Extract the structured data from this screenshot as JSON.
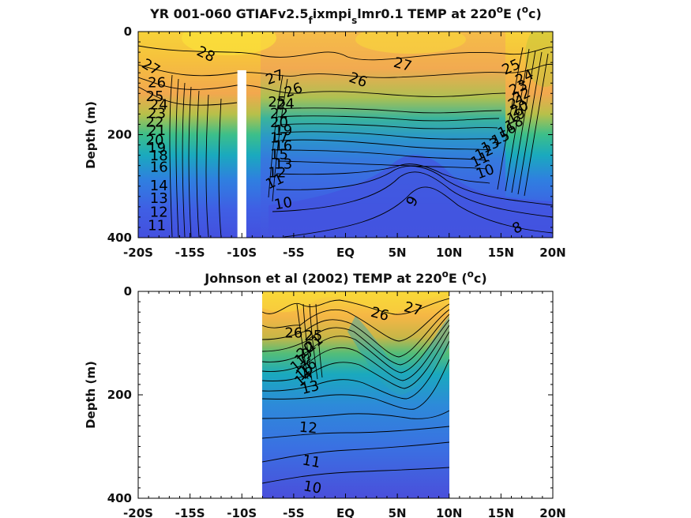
{
  "chart_data": [
    {
      "type": "contour",
      "title_main": "YR 001-060 GTIAFv2.5",
      "title_sub1": "f",
      "title_mid": "ixmpi",
      "title_sub2": "s",
      "title_tail": "lmr0.1 TEMP at 220",
      "title_sup": "o",
      "title_end": "E (",
      "title_unit_sup": "o",
      "title_unit_end": "c)",
      "ylabel": "Depth (m)",
      "xlim": [
        -20,
        20
      ],
      "ylim": [
        400,
        0
      ],
      "xticks": [
        -20,
        -15,
        -10,
        -5,
        0,
        5,
        10,
        15,
        20
      ],
      "xtick_labels": [
        "-20S",
        "-15S",
        "-10S",
        "-5S",
        "EQ",
        "5N",
        "10N",
        "15N",
        "20N"
      ],
      "yticks": [
        0,
        200,
        400
      ],
      "ytick_labels": [
        "0",
        "200",
        "400"
      ],
      "data_range_lat": [
        -20,
        20
      ],
      "masked_band_lat": [
        -10.2,
        -9.8
      ],
      "masked_band_depth": [
        75,
        400
      ],
      "contour_labels": [
        {
          "text": "28",
          "lat": -13.5,
          "depth": 45,
          "rot": 25
        },
        {
          "text": "27",
          "lat": -18.8,
          "depth": 70,
          "rot": 30
        },
        {
          "text": "26",
          "lat": -18.2,
          "depth": 100,
          "rot": 0
        },
        {
          "text": "25",
          "lat": -18.4,
          "depth": 127,
          "rot": 0
        },
        {
          "text": "24",
          "lat": -18.0,
          "depth": 143,
          "rot": 0
        },
        {
          "text": "23",
          "lat": -18.2,
          "depth": 160,
          "rot": 0
        },
        {
          "text": "22",
          "lat": -18.4,
          "depth": 177,
          "rot": 0
        },
        {
          "text": "21",
          "lat": -18.2,
          "depth": 193,
          "rot": 0
        },
        {
          "text": "20",
          "lat": -18.4,
          "depth": 212,
          "rot": 0
        },
        {
          "text": "19",
          "lat": -18.2,
          "depth": 227,
          "rot": 0
        },
        {
          "text": "18",
          "lat": -18.0,
          "depth": 242,
          "rot": 0
        },
        {
          "text": "16",
          "lat": -18.0,
          "depth": 264,
          "rot": 0
        },
        {
          "text": "14",
          "lat": -18.0,
          "depth": 300,
          "rot": 0
        },
        {
          "text": "13",
          "lat": -18.0,
          "depth": 325,
          "rot": 0
        },
        {
          "text": "12",
          "lat": -18.0,
          "depth": 352,
          "rot": 0
        },
        {
          "text": "11",
          "lat": -18.2,
          "depth": 378,
          "rot": 0
        },
        {
          "text": "27",
          "lat": -6.8,
          "depth": 90,
          "rot": -20
        },
        {
          "text": "26",
          "lat": -5.0,
          "depth": 115,
          "rot": -20
        },
        {
          "text": "25",
          "lat": -6.6,
          "depth": 138,
          "rot": 0
        },
        {
          "text": "24",
          "lat": -5.8,
          "depth": 142,
          "rot": 0
        },
        {
          "text": "22",
          "lat": -6.4,
          "depth": 160,
          "rot": 0
        },
        {
          "text": "20",
          "lat": -6.4,
          "depth": 178,
          "rot": 0
        },
        {
          "text": "19",
          "lat": -6.0,
          "depth": 193,
          "rot": 0
        },
        {
          "text": "17",
          "lat": -6.4,
          "depth": 208,
          "rot": 0
        },
        {
          "text": "16",
          "lat": -6.0,
          "depth": 223,
          "rot": 0
        },
        {
          "text": "15",
          "lat": -6.4,
          "depth": 240,
          "rot": 0
        },
        {
          "text": "13",
          "lat": -6.0,
          "depth": 258,
          "rot": 0
        },
        {
          "text": "12",
          "lat": -6.6,
          "depth": 275,
          "rot": 0
        },
        {
          "text": "11",
          "lat": -6.8,
          "depth": 292,
          "rot": -25
        },
        {
          "text": "10",
          "lat": -6.0,
          "depth": 335,
          "rot": -10
        },
        {
          "text": "27",
          "lat": 5.5,
          "depth": 65,
          "rot": 15
        },
        {
          "text": "26",
          "lat": 1.2,
          "depth": 95,
          "rot": 20
        },
        {
          "text": "9",
          "lat": 6.5,
          "depth": 330,
          "rot": -60
        },
        {
          "text": "25",
          "lat": 16.0,
          "depth": 70,
          "rot": -25
        },
        {
          "text": "24",
          "lat": 17.3,
          "depth": 90,
          "rot": -25
        },
        {
          "text": "23",
          "lat": 16.7,
          "depth": 110,
          "rot": -25
        },
        {
          "text": "22",
          "lat": 17.0,
          "depth": 125,
          "rot": -25
        },
        {
          "text": "21",
          "lat": 16.6,
          "depth": 138,
          "rot": -25
        },
        {
          "text": "20",
          "lat": 16.8,
          "depth": 150,
          "rot": -25
        },
        {
          "text": "19",
          "lat": 16.5,
          "depth": 165,
          "rot": -25
        },
        {
          "text": "18",
          "lat": 16.3,
          "depth": 180,
          "rot": -25
        },
        {
          "text": "16",
          "lat": 15.6,
          "depth": 193,
          "rot": -25
        },
        {
          "text": "15",
          "lat": 15.0,
          "depth": 208,
          "rot": -25
        },
        {
          "text": "13",
          "lat": 14.0,
          "depth": 222,
          "rot": -25
        },
        {
          "text": "12",
          "lat": 13.4,
          "depth": 236,
          "rot": -25
        },
        {
          "text": "11",
          "lat": 13.0,
          "depth": 250,
          "rot": -25
        },
        {
          "text": "10",
          "lat": 13.5,
          "depth": 273,
          "rot": -20
        },
        {
          "text": "8",
          "lat": 16.6,
          "depth": 382,
          "rot": -25
        }
      ]
    },
    {
      "type": "contour",
      "title_main": "Johnson et al (2002) TEMP at 220",
      "title_sup": "o",
      "title_end": "E (",
      "title_unit_sup": "o",
      "title_unit_end": "c)",
      "ylabel": "Depth (m)",
      "xlim": [
        -20,
        20
      ],
      "ylim": [
        400,
        0
      ],
      "xticks": [
        -20,
        -15,
        -10,
        -5,
        0,
        5,
        10,
        15,
        20
      ],
      "xtick_labels": [
        "-20S",
        "-15S",
        "-10S",
        "-5S",
        "EQ",
        "5N",
        "10N",
        "15N",
        "20N"
      ],
      "yticks": [
        0,
        200,
        400
      ],
      "ytick_labels": [
        "0",
        "200",
        "400"
      ],
      "data_range_lat": [
        -8,
        10
      ],
      "contour_labels": [
        {
          "text": "26",
          "lat": 3.3,
          "depth": 45,
          "rot": 15
        },
        {
          "text": "27",
          "lat": 6.5,
          "depth": 35,
          "rot": 15
        },
        {
          "text": "26",
          "lat": -5.0,
          "depth": 82,
          "rot": 0
        },
        {
          "text": "25",
          "lat": -3.1,
          "depth": 87,
          "rot": 0
        },
        {
          "text": "21",
          "lat": -3.0,
          "depth": 102,
          "rot": -40
        },
        {
          "text": "20",
          "lat": -3.8,
          "depth": 115,
          "rot": -40
        },
        {
          "text": "19",
          "lat": -4.0,
          "depth": 127,
          "rot": -40
        },
        {
          "text": "17",
          "lat": -4.4,
          "depth": 140,
          "rot": -40
        },
        {
          "text": "16",
          "lat": -3.6,
          "depth": 148,
          "rot": -40
        },
        {
          "text": "15",
          "lat": -3.9,
          "depth": 157,
          "rot": -40
        },
        {
          "text": "14",
          "lat": -4.0,
          "depth": 168,
          "rot": -40
        },
        {
          "text": "13",
          "lat": -3.4,
          "depth": 187,
          "rot": -15
        },
        {
          "text": "12",
          "lat": -3.6,
          "depth": 265,
          "rot": 5
        },
        {
          "text": "11",
          "lat": -3.3,
          "depth": 330,
          "rot": 10
        },
        {
          "text": "10",
          "lat": -3.2,
          "depth": 380,
          "rot": 10
        }
      ]
    }
  ]
}
